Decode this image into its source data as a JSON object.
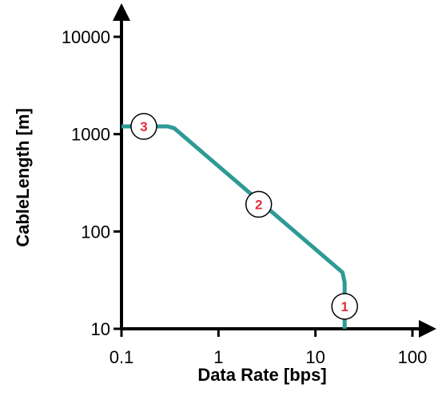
{
  "chart_data": {
    "type": "line",
    "xlabel": "Data Rate [bps]",
    "ylabel": "CableLength [m]",
    "x_scale": "log",
    "y_scale": "log",
    "xlim": [
      0.1,
      100
    ],
    "ylim": [
      10,
      10000
    ],
    "x_ticks": [
      {
        "value": 0.1,
        "label": "0.1"
      },
      {
        "value": 1,
        "label": "1"
      },
      {
        "value": 10,
        "label": "10"
      },
      {
        "value": 100,
        "label": "100"
      }
    ],
    "y_ticks": [
      {
        "value": 10,
        "label": "10"
      },
      {
        "value": 100,
        "label": "100"
      },
      {
        "value": 1000,
        "label": "1000"
      },
      {
        "value": 10000,
        "label": "10000"
      }
    ],
    "grid": false,
    "series": [
      {
        "color": "#2e9a96",
        "x": [
          0.1,
          0.3,
          0.35,
          19,
          20,
          20
        ],
        "y": [
          1200,
          1200,
          1150,
          38,
          30,
          10
        ]
      }
    ],
    "markers": [
      {
        "label": "3",
        "x": 0.17,
        "y": 1200
      },
      {
        "label": "2",
        "x": 2.6,
        "y": 190
      },
      {
        "label": "1",
        "x": 20,
        "y": 17
      }
    ],
    "marker_text_color": "#e03040"
  }
}
